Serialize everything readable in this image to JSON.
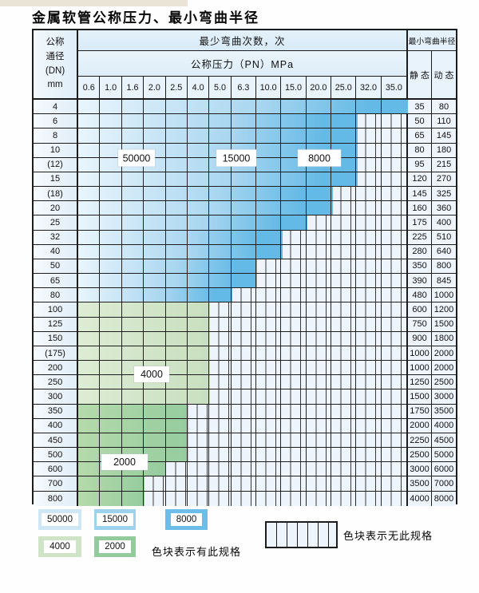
{
  "title": "金属软管公称压力、最小弯曲半径",
  "table": {
    "dn_header_lines": [
      "公称",
      "通径",
      "(DN)",
      "mm"
    ],
    "cycles_header": "最少弯曲次数，次",
    "pn_header": "公称压力（PN）MPa",
    "radius_header": "最小弯曲半径",
    "static_label": "静 态",
    "dynamic_label": "动 态",
    "pn_columns": [
      "0.6",
      "1.0",
      "1.6",
      "2.0",
      "2.5",
      "4.0",
      "5.0",
      "6.3",
      "10.0",
      "15.0",
      "20.0",
      "25.0",
      "32.0",
      "35.0"
    ],
    "rows": [
      {
        "dn": "4",
        "spec_cols": 14,
        "zone": "blue",
        "static": "35",
        "dynamic": "80"
      },
      {
        "dn": "6",
        "spec_cols": 12,
        "zone": "blue",
        "static": "50",
        "dynamic": "110"
      },
      {
        "dn": "8",
        "spec_cols": 12,
        "zone": "blue",
        "static": "65",
        "dynamic": "145"
      },
      {
        "dn": "10",
        "spec_cols": 12,
        "zone": "blue",
        "static": "80",
        "dynamic": "180"
      },
      {
        "dn": "(12)",
        "spec_cols": 12,
        "zone": "blue",
        "static": "95",
        "dynamic": "215"
      },
      {
        "dn": "15",
        "spec_cols": 12,
        "zone": "blue",
        "static": "120",
        "dynamic": "270"
      },
      {
        "dn": "(18)",
        "spec_cols": 11,
        "zone": "blue",
        "static": "145",
        "dynamic": "325"
      },
      {
        "dn": "20",
        "spec_cols": 11,
        "zone": "blue",
        "static": "160",
        "dynamic": "360"
      },
      {
        "dn": "25",
        "spec_cols": 10,
        "zone": "blue",
        "static": "175",
        "dynamic": "400"
      },
      {
        "dn": "32",
        "spec_cols": 9,
        "zone": "blue",
        "static": "225",
        "dynamic": "510"
      },
      {
        "dn": "40",
        "spec_cols": 9,
        "zone": "blue",
        "static": "280",
        "dynamic": "640"
      },
      {
        "dn": "50",
        "spec_cols": 8,
        "zone": "blue",
        "static": "350",
        "dynamic": "800"
      },
      {
        "dn": "65",
        "spec_cols": 8,
        "zone": "blue",
        "static": "390",
        "dynamic": "845"
      },
      {
        "dn": "80",
        "spec_cols": 7,
        "zone": "blue",
        "static": "480",
        "dynamic": "1000"
      },
      {
        "dn": "100",
        "spec_cols": 6,
        "zone": "green4000",
        "static": "600",
        "dynamic": "1200"
      },
      {
        "dn": "125",
        "spec_cols": 6,
        "zone": "green4000",
        "static": "750",
        "dynamic": "1500"
      },
      {
        "dn": "150",
        "spec_cols": 6,
        "zone": "green4000",
        "static": "900",
        "dynamic": "1800"
      },
      {
        "dn": "(175)",
        "spec_cols": 6,
        "zone": "green4000",
        "static": "1000",
        "dynamic": "2000"
      },
      {
        "dn": "200",
        "spec_cols": 6,
        "zone": "green4000",
        "static": "1000",
        "dynamic": "2000"
      },
      {
        "dn": "250",
        "spec_cols": 6,
        "zone": "green4000",
        "static": "1250",
        "dynamic": "2500"
      },
      {
        "dn": "300",
        "spec_cols": 6,
        "zone": "green4000",
        "static": "1500",
        "dynamic": "3000"
      },
      {
        "dn": "350",
        "spec_cols": 5,
        "zone": "green2000",
        "static": "1750",
        "dynamic": "3500"
      },
      {
        "dn": "400",
        "spec_cols": 5,
        "zone": "green2000",
        "static": "2000",
        "dynamic": "4000"
      },
      {
        "dn": "450",
        "spec_cols": 5,
        "zone": "green2000",
        "static": "2250",
        "dynamic": "4500"
      },
      {
        "dn": "500",
        "spec_cols": 5,
        "zone": "green2000",
        "static": "2500",
        "dynamic": "5000"
      },
      {
        "dn": "600",
        "spec_cols": 4,
        "zone": "green2000",
        "static": "3000",
        "dynamic": "6000"
      },
      {
        "dn": "700",
        "spec_cols": 3,
        "zone": "green2000",
        "static": "3500",
        "dynamic": "7000"
      },
      {
        "dn": "800",
        "spec_cols": 3,
        "zone": "green2000",
        "static": "4000",
        "dynamic": "8000"
      }
    ]
  },
  "overlays": [
    {
      "id": "cycles-50000",
      "text": "50000"
    },
    {
      "id": "cycles-15000",
      "text": "15000"
    },
    {
      "id": "cycles-8000",
      "text": "8000"
    },
    {
      "id": "cycles-4000",
      "text": "4000"
    },
    {
      "id": "cycles-2000",
      "text": "2000"
    }
  ],
  "legend": {
    "has_spec_text": "色块表示有此规格",
    "no_spec_text": "色块表示无此规格",
    "items": [
      {
        "label": "50000",
        "color": "#cfe6f5"
      },
      {
        "label": "15000",
        "color": "#9dd2ee"
      },
      {
        "label": "8000",
        "color": "#6cbde7"
      },
      {
        "label": "4000",
        "color": "#cfe4c6"
      },
      {
        "label": "2000",
        "color": "#93cb9c"
      }
    ]
  },
  "colors": {
    "grid_line": "#232323",
    "blue_start": "#e9f5fc",
    "blue_mid": "#a9d6f0",
    "blue_end": "#64bae6",
    "green4000_start": "#ddecd4",
    "green4000_end": "#c8dfbe",
    "green2000_start": "#b5daab",
    "green2000_end": "#95cc9e",
    "hatch_bg": "#eef4fc",
    "value_bg": "#edf4fb"
  }
}
